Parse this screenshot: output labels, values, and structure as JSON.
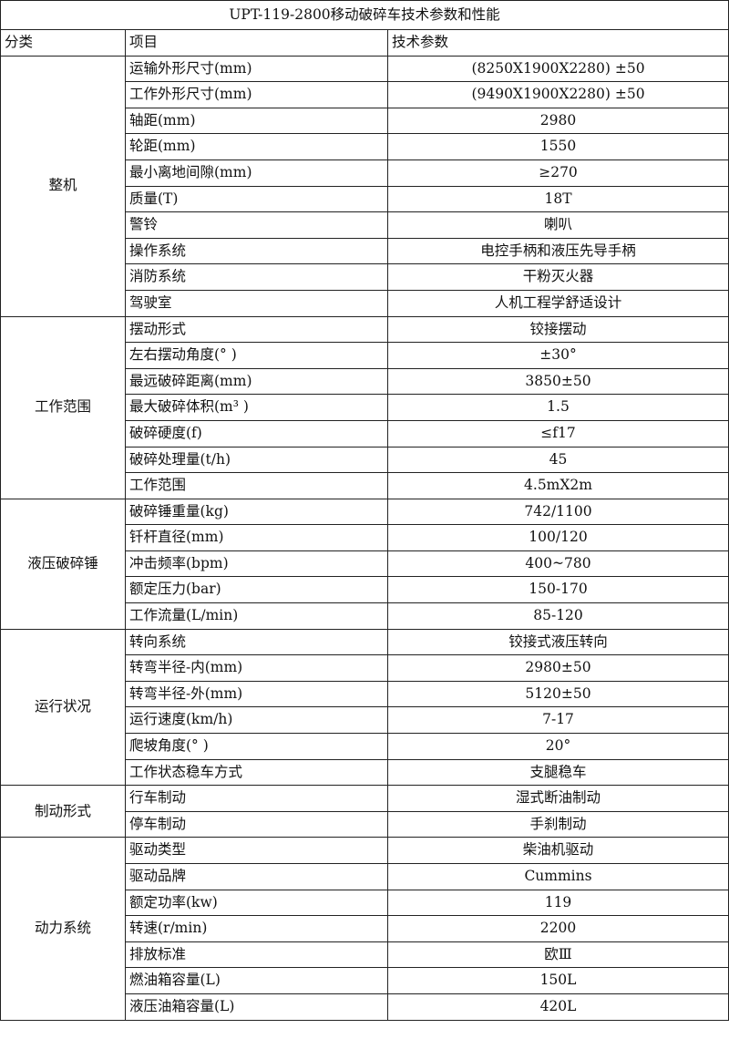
{
  "title": "UPT-119-2800移动破碎车技术参数和性能",
  "headers": [
    "分类",
    "项目",
    "技术参数"
  ],
  "groups": [
    {
      "category": "整机",
      "rows": [
        [
          "运输外形尺寸(mm)",
          "(8250X1900X2280) ±50"
        ],
        [
          "工作外形尺寸(mm)",
          "(9490X1900X2280) ±50"
        ],
        [
          "轴距(mm)",
          "2980"
        ],
        [
          "轮距(mm)",
          "1550"
        ],
        [
          "最小离地间隙(mm)",
          "≥270"
        ],
        [
          "质量(T)",
          "18T"
        ],
        [
          "警铃",
          "喇叭"
        ],
        [
          "操作系统",
          "电控手柄和液压先导手柄"
        ],
        [
          "消防系统",
          "干粉灭火器"
        ],
        [
          "驾驶室",
          "人机工程学舒适设计"
        ]
      ]
    },
    {
      "category": "工作范围",
      "rows": [
        [
          "摆动形式",
          "铰接摆动"
        ],
        [
          "左右摆动角度(° )",
          "±30°"
        ],
        [
          "最远破碎距离(mm)",
          "3850±50"
        ],
        [
          "最大破碎体积(m³ )",
          "1.5"
        ],
        [
          "破碎硬度(f)",
          "≤f17"
        ],
        [
          "破碎处理量(t/h)",
          "45"
        ],
        [
          "工作范围",
          "4.5mX2m"
        ]
      ]
    },
    {
      "category": "液压破碎锤",
      "rows": [
        [
          "破碎锤重量(kg)",
          "742/1100"
        ],
        [
          "钎杆直径(mm)",
          "100/120"
        ],
        [
          "冲击频率(bpm)",
          "400~780"
        ],
        [
          "额定压力(bar)",
          "150-170"
        ],
        [
          "工作流量(L/min)",
          "85-120"
        ]
      ]
    },
    {
      "category": "运行状况",
      "rows": [
        [
          "转向系统",
          "铰接式液压转向"
        ],
        [
          "转弯半径-内(mm)",
          "2980±50"
        ],
        [
          "转弯半径-外(mm)",
          "5120±50"
        ],
        [
          "运行速度(km/h)",
          "7-17"
        ],
        [
          "爬坡角度(° )",
          "20°"
        ],
        [
          "工作状态稳车方式",
          "支腿稳车"
        ]
      ]
    },
    {
      "category": "制动形式",
      "rows": [
        [
          "行车制动",
          "湿式断油制动"
        ],
        [
          "停车制动",
          "手刹制动"
        ]
      ]
    },
    {
      "category": "动力系统",
      "rows": [
        [
          "驱动类型",
          "柴油机驱动"
        ],
        [
          "驱动品牌",
          "Cummins"
        ],
        [
          "额定功率(kw)",
          "119"
        ],
        [
          "转速(r/min)",
          "2200"
        ],
        [
          "排放标准",
          "欧Ⅲ"
        ],
        [
          "燃油箱容量(L)",
          "150L"
        ],
        [
          "液压油箱容量(L)",
          "420L"
        ]
      ]
    }
  ]
}
